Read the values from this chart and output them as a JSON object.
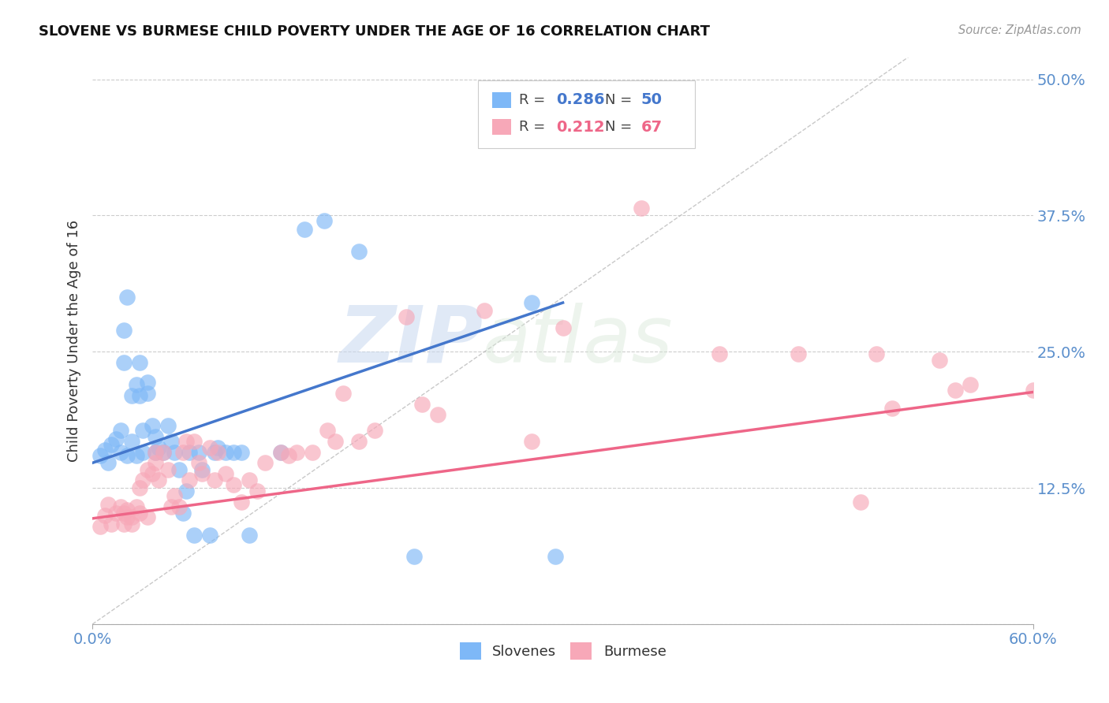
{
  "title": "SLOVENE VS BURMESE CHILD POVERTY UNDER THE AGE OF 16 CORRELATION CHART",
  "source": "Source: ZipAtlas.com",
  "ylabel": "Child Poverty Under the Age of 16",
  "xlim": [
    0.0,
    0.6
  ],
  "ylim": [
    0.0,
    0.52
  ],
  "yticks": [
    0.0,
    0.125,
    0.25,
    0.375,
    0.5
  ],
  "yticklabels": [
    "",
    "12.5%",
    "25.0%",
    "37.5%",
    "50.0%"
  ],
  "grid_color": "#cccccc",
  "background_color": "#ffffff",
  "watermark_zip": "ZIP",
  "watermark_atlas": "atlas",
  "slovene_color": "#7EB8F7",
  "burmese_color": "#F7A8B8",
  "trend_slovene_color": "#4477CC",
  "trend_burmese_color": "#EE6688",
  "diagonal_color": "#bbbbbb",
  "tick_label_color": "#5B8FCC",
  "slovene_x": [
    0.005,
    0.008,
    0.01,
    0.012,
    0.015,
    0.018,
    0.018,
    0.02,
    0.02,
    0.022,
    0.022,
    0.025,
    0.025,
    0.028,
    0.028,
    0.03,
    0.03,
    0.032,
    0.032,
    0.035,
    0.035,
    0.038,
    0.04,
    0.04,
    0.042,
    0.045,
    0.048,
    0.05,
    0.052,
    0.055,
    0.058,
    0.06,
    0.062,
    0.065,
    0.068,
    0.07,
    0.075,
    0.078,
    0.08,
    0.085,
    0.09,
    0.095,
    0.1,
    0.12,
    0.135,
    0.148,
    0.17,
    0.205,
    0.28,
    0.295
  ],
  "slovene_y": [
    0.155,
    0.16,
    0.148,
    0.165,
    0.17,
    0.178,
    0.158,
    0.24,
    0.27,
    0.3,
    0.155,
    0.168,
    0.21,
    0.22,
    0.155,
    0.24,
    0.21,
    0.178,
    0.158,
    0.212,
    0.222,
    0.182,
    0.172,
    0.158,
    0.162,
    0.158,
    0.182,
    0.168,
    0.158,
    0.142,
    0.102,
    0.122,
    0.158,
    0.082,
    0.158,
    0.142,
    0.082,
    0.158,
    0.162,
    0.158,
    0.158,
    0.158,
    0.082,
    0.158,
    0.362,
    0.37,
    0.342,
    0.062,
    0.295,
    0.062
  ],
  "burmese_x": [
    0.005,
    0.008,
    0.01,
    0.012,
    0.015,
    0.018,
    0.02,
    0.02,
    0.022,
    0.022,
    0.025,
    0.025,
    0.028,
    0.03,
    0.03,
    0.032,
    0.035,
    0.035,
    0.038,
    0.04,
    0.04,
    0.042,
    0.045,
    0.048,
    0.05,
    0.052,
    0.055,
    0.058,
    0.06,
    0.062,
    0.065,
    0.068,
    0.07,
    0.075,
    0.078,
    0.08,
    0.085,
    0.09,
    0.095,
    0.1,
    0.105,
    0.11,
    0.12,
    0.125,
    0.13,
    0.14,
    0.15,
    0.155,
    0.16,
    0.17,
    0.18,
    0.2,
    0.21,
    0.22,
    0.25,
    0.28,
    0.3,
    0.35,
    0.4,
    0.45,
    0.49,
    0.5,
    0.51,
    0.54,
    0.55,
    0.56,
    0.6
  ],
  "burmese_y": [
    0.09,
    0.1,
    0.11,
    0.092,
    0.102,
    0.108,
    0.092,
    0.102,
    0.098,
    0.105,
    0.092,
    0.098,
    0.108,
    0.102,
    0.125,
    0.132,
    0.142,
    0.098,
    0.138,
    0.158,
    0.148,
    0.132,
    0.158,
    0.142,
    0.108,
    0.118,
    0.108,
    0.158,
    0.168,
    0.132,
    0.168,
    0.148,
    0.138,
    0.162,
    0.132,
    0.158,
    0.138,
    0.128,
    0.112,
    0.132,
    0.122,
    0.148,
    0.158,
    0.155,
    0.158,
    0.158,
    0.178,
    0.168,
    0.212,
    0.168,
    0.178,
    0.282,
    0.202,
    0.192,
    0.288,
    0.168,
    0.272,
    0.382,
    0.248,
    0.248,
    0.112,
    0.248,
    0.198,
    0.242,
    0.215,
    0.22,
    0.215
  ],
  "trend_slovene_x0": 0.0,
  "trend_slovene_y0": 0.148,
  "trend_slovene_x1": 0.3,
  "trend_slovene_y1": 0.295,
  "trend_burmese_x0": 0.0,
  "trend_burmese_y0": 0.097,
  "trend_burmese_x1": 0.6,
  "trend_burmese_y1": 0.213
}
